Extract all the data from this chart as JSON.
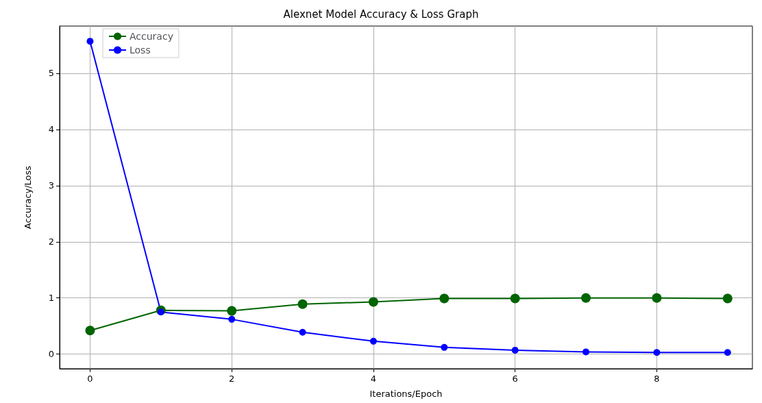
{
  "chart_data": {
    "type": "line",
    "title": "Alexnet Model Accuracy & Loss Graph",
    "xlabel": "Iterations/Epoch",
    "ylabel": "Accuracy/Loss",
    "x": [
      0,
      1,
      2,
      3,
      4,
      5,
      6,
      7,
      8,
      9
    ],
    "series": [
      {
        "name": "Accuracy",
        "color": "#006400",
        "values": [
          0.42,
          0.78,
          0.77,
          0.89,
          0.93,
          0.99,
          0.99,
          1.0,
          1.0,
          0.99
        ]
      },
      {
        "name": "Loss",
        "color": "#0000ff",
        "values": [
          5.57,
          0.75,
          0.62,
          0.39,
          0.23,
          0.12,
          0.07,
          0.04,
          0.03,
          0.03
        ]
      }
    ],
    "xlim": [
      -0.43,
      9.35
    ],
    "xticks": [
      0,
      2,
      4,
      6,
      8
    ],
    "ylim": [
      -0.26,
      5.84
    ],
    "yticks": [
      0,
      1,
      2,
      3,
      4,
      5
    ],
    "grid": true,
    "legend": "top left",
    "marker": "circle",
    "line_style": "solid"
  }
}
